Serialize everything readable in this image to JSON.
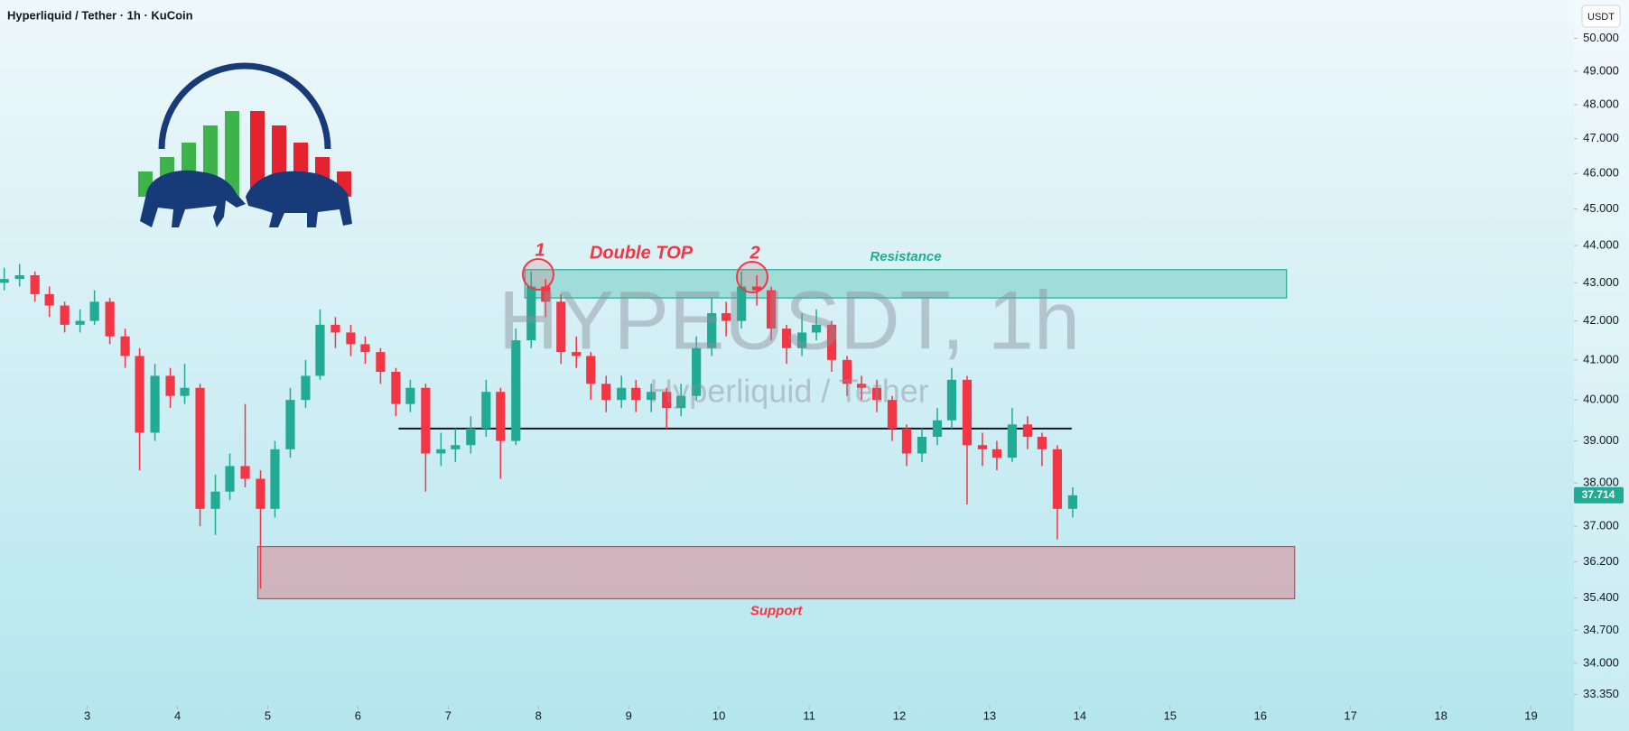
{
  "chart_data": {
    "type": "candlestick",
    "title": "Hyperliquid / Tether · 1h · KuCoin",
    "currency": "USDT",
    "watermark": "HYPEUSDT, 1h",
    "watermark_subtitle": "Hyperliquid / Tether",
    "up_color": "#22ab94",
    "down_color": "#f23645",
    "log_scale": true,
    "xlim": [
      2.033,
      19.475
    ],
    "xticks": [
      3,
      4,
      5,
      6,
      7,
      8,
      9,
      10,
      11,
      12,
      13,
      14,
      15,
      16,
      17,
      18,
      19
    ],
    "ylim": [
      33.12,
      51.2
    ],
    "yticks": [
      {
        "value": 50,
        "label": "50.000"
      },
      {
        "value": 49,
        "label": "49.000"
      },
      {
        "value": 48,
        "label": "48.000"
      },
      {
        "value": 47,
        "label": "47.000"
      },
      {
        "value": 46,
        "label": "46.000"
      },
      {
        "value": 45,
        "label": "45.000"
      },
      {
        "value": 44,
        "label": "44.000"
      },
      {
        "value": 43,
        "label": "43.000"
      },
      {
        "value": 42,
        "label": "42.000"
      },
      {
        "value": 41,
        "label": "41.000"
      },
      {
        "value": 40,
        "label": "40.000"
      },
      {
        "value": 39,
        "label": "39.000"
      },
      {
        "value": 38,
        "label": "38.000"
      },
      {
        "value": 37,
        "label": "37.000"
      },
      {
        "value": 36.2,
        "label": "36.200"
      },
      {
        "value": 35.4,
        "label": "35.400"
      },
      {
        "value": 34.7,
        "label": "34.700"
      },
      {
        "value": 34,
        "label": "34.000"
      },
      {
        "value": 33.35,
        "label": "33.350"
      }
    ],
    "candles": {
      "x": [
        2.08,
        2.25,
        2.42,
        2.58,
        2.75,
        2.92,
        3.08,
        3.25,
        3.42,
        3.58,
        3.75,
        3.92,
        4.08,
        4.25,
        4.42,
        4.58,
        4.75,
        4.92,
        5.08,
        5.25,
        5.42,
        5.58,
        5.75,
        5.92,
        6.08,
        6.25,
        6.42,
        6.58,
        6.75,
        6.92,
        7.08,
        7.25,
        7.42,
        7.58,
        7.75,
        7.92,
        8.08,
        8.25,
        8.42,
        8.58,
        8.75,
        8.92,
        9.08,
        9.25,
        9.42,
        9.58,
        9.75,
        9.92,
        10.08,
        10.25,
        10.42,
        10.58,
        10.75,
        10.92,
        11.08,
        11.25,
        11.42,
        11.58,
        11.75,
        11.92,
        12.08,
        12.25,
        12.42,
        12.58,
        12.75,
        12.92,
        13.08,
        13.25,
        13.42,
        13.58,
        13.75,
        13.92
      ],
      "open": [
        43.0,
        43.1,
        43.2,
        42.7,
        42.4,
        41.9,
        42.0,
        42.5,
        41.6,
        41.1,
        39.2,
        40.6,
        40.1,
        40.3,
        37.4,
        37.8,
        38.4,
        38.1,
        37.4,
        38.8,
        40.0,
        40.6,
        41.9,
        41.7,
        41.4,
        41.2,
        40.7,
        39.9,
        40.3,
        38.7,
        38.8,
        38.9,
        39.3,
        40.2,
        39.0,
        41.5,
        42.9,
        42.5,
        41.2,
        41.1,
        40.4,
        40.0,
        40.3,
        40.0,
        40.2,
        39.8,
        40.1,
        41.3,
        42.2,
        42.0,
        42.9,
        42.8,
        41.8,
        41.3,
        41.7,
        41.9,
        41.0,
        40.4,
        40.3,
        40.0,
        39.3,
        38.7,
        39.1,
        39.5,
        40.5,
        38.9,
        38.8,
        38.6,
        39.4,
        39.1,
        38.8,
        37.4
      ],
      "high": [
        43.4,
        43.5,
        43.3,
        42.9,
        42.5,
        42.3,
        42.8,
        42.6,
        41.8,
        41.3,
        40.9,
        40.8,
        40.9,
        40.4,
        38.2,
        38.7,
        39.9,
        38.3,
        39.0,
        40.3,
        41.0,
        42.3,
        42.1,
        41.9,
        41.6,
        41.3,
        40.8,
        40.5,
        40.4,
        39.2,
        39.3,
        39.6,
        40.5,
        40.3,
        41.8,
        43.3,
        43.1,
        42.7,
        41.6,
        41.2,
        40.6,
        40.6,
        40.5,
        40.4,
        40.3,
        40.4,
        41.6,
        42.6,
        42.5,
        43.3,
        43.2,
        42.9,
        41.9,
        42.2,
        42.3,
        42.0,
        41.1,
        40.6,
        40.5,
        40.1,
        39.4,
        39.3,
        39.8,
        40.8,
        40.6,
        39.2,
        39.0,
        39.8,
        39.6,
        39.2,
        38.9,
        37.9
      ],
      "low": [
        42.8,
        42.9,
        42.5,
        42.1,
        41.7,
        41.7,
        41.9,
        41.4,
        40.8,
        38.3,
        39.0,
        39.8,
        39.9,
        37.0,
        36.8,
        37.6,
        37.9,
        35.6,
        37.2,
        38.6,
        39.8,
        40.5,
        41.3,
        41.1,
        40.9,
        40.4,
        39.6,
        39.7,
        37.8,
        38.4,
        38.5,
        38.7,
        39.1,
        38.1,
        38.9,
        41.3,
        42.1,
        40.9,
        40.8,
        40.0,
        39.7,
        39.8,
        39.7,
        39.7,
        39.3,
        39.6,
        40.0,
        41.1,
        41.6,
        41.8,
        42.4,
        41.5,
        40.9,
        41.1,
        41.5,
        40.7,
        40.1,
        40.0,
        39.7,
        39.0,
        38.4,
        38.5,
        38.9,
        39.3,
        37.5,
        38.4,
        38.3,
        38.5,
        38.8,
        38.4,
        36.7,
        37.2
      ],
      "close": [
        43.1,
        43.2,
        42.7,
        42.4,
        41.9,
        42.0,
        42.5,
        41.6,
        41.1,
        39.2,
        40.6,
        40.1,
        40.3,
        37.4,
        37.8,
        38.4,
        38.1,
        37.4,
        38.8,
        40.0,
        40.6,
        41.9,
        41.7,
        41.4,
        41.2,
        40.7,
        39.9,
        40.3,
        38.7,
        38.8,
        38.9,
        39.3,
        40.2,
        39.0,
        41.5,
        42.9,
        42.5,
        41.2,
        41.1,
        40.4,
        40.0,
        40.3,
        40.0,
        40.2,
        39.8,
        40.1,
        41.3,
        42.2,
        42.0,
        42.9,
        42.8,
        41.8,
        41.3,
        41.7,
        41.9,
        41.0,
        40.4,
        40.3,
        40.0,
        39.3,
        38.7,
        39.1,
        39.5,
        40.5,
        38.9,
        38.8,
        38.6,
        39.4,
        39.1,
        38.8,
        37.4,
        37.714
      ]
    },
    "zones": [
      {
        "label": "Resistance",
        "color": "#22ab94",
        "x": [
          7.85,
          16.29
        ],
        "y": [
          42.6,
          43.35
        ]
      },
      {
        "label": "Support",
        "color": "#f23645",
        "x": [
          4.89,
          16.38
        ],
        "y": [
          35.38,
          36.54
        ]
      }
    ],
    "neckline": {
      "color": "#131722",
      "x": [
        6.45,
        13.91
      ],
      "y": 39.3
    },
    "annotations": [
      "Double TOP",
      "1",
      "2"
    ]
  }
}
